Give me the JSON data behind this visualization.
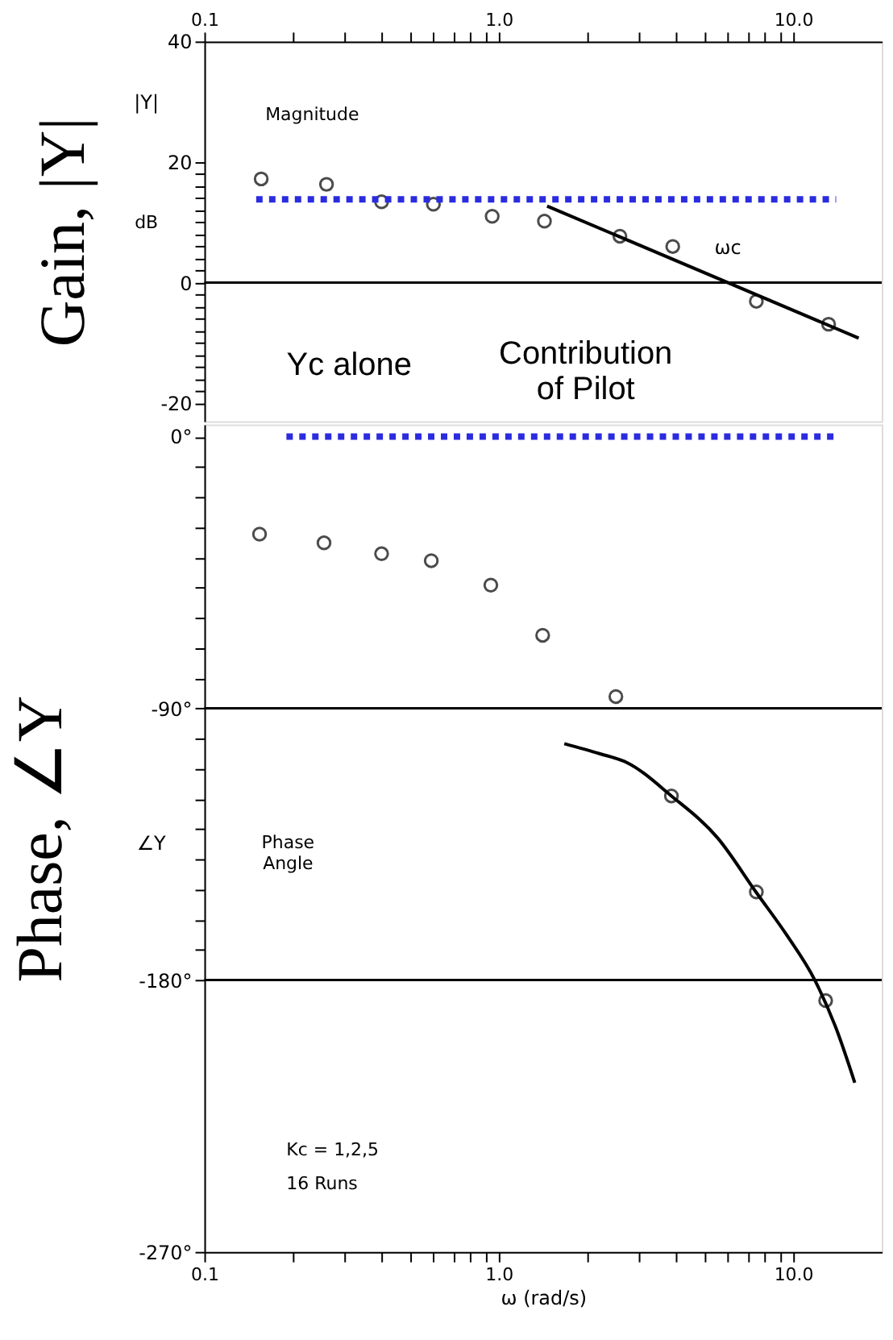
{
  "chart_data": [
    {
      "type": "scatter",
      "ylabel": "Gain, |Y|",
      "log": "x",
      "xlim": [
        0.1,
        20
      ],
      "ylim": [
        -23,
        40
      ],
      "grid": false,
      "xticks": [
        0.1,
        {
          "value": 0.2,
          "label": null
        },
        {
          "value": 0.3,
          "label": null
        },
        {
          "value": 0.4,
          "label": null
        },
        {
          "value": 0.5,
          "label": null
        },
        {
          "value": 0.6,
          "label": null
        },
        {
          "value": 0.7,
          "label": null
        },
        {
          "value": 0.8,
          "label": null
        },
        {
          "value": 0.9,
          "label": null
        },
        {
          "value": 1,
          "label": "1.0"
        },
        {
          "value": 2,
          "label": null
        },
        {
          "value": 3,
          "label": null
        },
        {
          "value": 4,
          "label": null
        },
        {
          "value": 5,
          "label": null
        },
        {
          "value": 6,
          "label": null
        },
        {
          "value": 7,
          "label": null
        },
        {
          "value": 8,
          "label": null
        },
        {
          "value": 9,
          "label": null
        },
        {
          "value": 10,
          "label": "10.0"
        }
      ],
      "yticks": [
        40,
        20,
        {
          "value": 18,
          "label": null
        },
        {
          "value": 16,
          "label": null
        },
        {
          "value": 14,
          "label": null
        },
        {
          "value": 12,
          "label": null
        },
        {
          "value": 10,
          "label": null
        },
        {
          "value": 8,
          "label": null
        },
        {
          "value": 6,
          "label": null
        },
        {
          "value": 4,
          "label": null
        },
        {
          "value": 2,
          "label": null
        },
        0,
        {
          "value": -2,
          "label": null
        },
        {
          "value": -4,
          "label": null
        },
        {
          "value": -6,
          "label": null
        },
        {
          "value": -8,
          "label": null
        },
        {
          "value": -10,
          "label": null
        },
        {
          "value": -12,
          "label": null
        },
        {
          "value": -14,
          "label": null
        },
        {
          "value": -16,
          "label": null
        },
        {
          "value": -18,
          "label": null
        },
        -20
      ],
      "ref_lines": [
        {
          "axis": "y",
          "value": 0,
          "color": "#000000"
        }
      ],
      "annotations": [
        "|Y|",
        "dB",
        "Magnitude",
        "Yc alone",
        "Contribution\nof Pilot",
        {
          "text": "ωc",
          "x": 6,
          "y": 0
        }
      ],
      "series": [
        {
          "marker": "circle",
          "color": "#000000",
          "x": [
            0.156,
            0.26,
            0.4,
            0.6,
            0.95,
            1.43,
            2.58,
            3.9,
            7.5,
            13.2
          ],
          "values": [
            17.2,
            16.3,
            13.4,
            13.0,
            11.0,
            10.2,
            7.7,
            6.0,
            -3.1,
            -6.9
          ]
        },
        {
          "type": "line",
          "color": "#000000",
          "line_style": "solid",
          "x": [
            1.46,
            16.7
          ],
          "values": [
            12.7,
            -9.2
          ]
        },
        {
          "type": "line",
          "color": "#2b2bdf",
          "line_style": "dotted",
          "x": [
            0.15,
            14
          ],
          "values": [
            13.8,
            13.8
          ]
        }
      ]
    },
    {
      "type": "scatter",
      "ylabel": "Phase, ∠Y",
      "xlabel": "ω (rad/s)",
      "log": "x",
      "xlim": [
        0.1,
        20
      ],
      "ylim": [
        -270,
        4
      ],
      "grid": false,
      "xticks": [
        0.1,
        {
          "value": 0.2,
          "label": null
        },
        {
          "value": 0.3,
          "label": null
        },
        {
          "value": 0.4,
          "label": null
        },
        {
          "value": 0.5,
          "label": null
        },
        {
          "value": 0.6,
          "label": null
        },
        {
          "value": 0.7,
          "label": null
        },
        {
          "value": 0.8,
          "label": null
        },
        {
          "value": 0.9,
          "label": null
        },
        {
          "value": 1,
          "label": "1.0"
        },
        {
          "value": 2,
          "label": null
        },
        {
          "value": 3,
          "label": null
        },
        {
          "value": 4,
          "label": null
        },
        {
          "value": 5,
          "label": null
        },
        {
          "value": 6,
          "label": null
        },
        {
          "value": 7,
          "label": null
        },
        {
          "value": 8,
          "label": null
        },
        {
          "value": 9,
          "label": null
        },
        {
          "value": 10,
          "label": "10.0"
        }
      ],
      "yticks": [
        {
          "value": 0,
          "label": "0°"
        },
        {
          "value": -10,
          "label": null
        },
        {
          "value": -20,
          "label": null
        },
        {
          "value": -30,
          "label": null
        },
        {
          "value": -40,
          "label": null
        },
        {
          "value": -50,
          "label": null
        },
        {
          "value": -60,
          "label": null
        },
        {
          "value": -70,
          "label": null
        },
        {
          "value": -80,
          "label": null
        },
        {
          "value": -90,
          "label": "-90°"
        },
        {
          "value": -100,
          "label": null
        },
        {
          "value": -110,
          "label": null
        },
        {
          "value": -120,
          "label": null
        },
        {
          "value": -130,
          "label": null
        },
        {
          "value": -140,
          "label": null
        },
        {
          "value": -150,
          "label": null
        },
        {
          "value": -160,
          "label": null
        },
        {
          "value": -170,
          "label": null
        },
        {
          "value": -180,
          "label": "-180°"
        },
        {
          "value": -270,
          "label": "-270°"
        }
      ],
      "ref_lines": [
        {
          "axis": "y",
          "value": -90,
          "color": "#000000"
        },
        {
          "axis": "y",
          "value": -180,
          "color": "#000000"
        }
      ],
      "annotations": [
        "∠Y",
        "Phase\nAngle",
        "Kc = 1,2,5",
        "16 Runs"
      ],
      "series": [
        {
          "marker": "circle",
          "color": "#000000",
          "x": [
            0.154,
            0.255,
            0.4,
            0.59,
            0.94,
            1.41,
            2.5,
            3.86,
            7.5,
            12.9
          ],
          "values": [
            -32.3,
            -35.2,
            -38.8,
            -41.1,
            -49.2,
            -65.8,
            -86.1,
            -119,
            -150.8,
            -186.8
          ]
        },
        {
          "type": "line",
          "color": "#000000",
          "line_style": "solid",
          "x": [
            1.67,
            2.2,
            2.73,
            3.86,
            5.55,
            7.5,
            9.5,
            11.85,
            14,
            16.2
          ],
          "values": [
            -101.7,
            -105,
            -108,
            -119,
            -133,
            -151,
            -165,
            -180,
            -196,
            -214
          ]
        },
        {
          "type": "line",
          "color": "#2b2bdf",
          "line_style": "dotted",
          "x": [
            0.19,
            14
          ],
          "values": [
            0,
            0
          ]
        }
      ]
    }
  ]
}
